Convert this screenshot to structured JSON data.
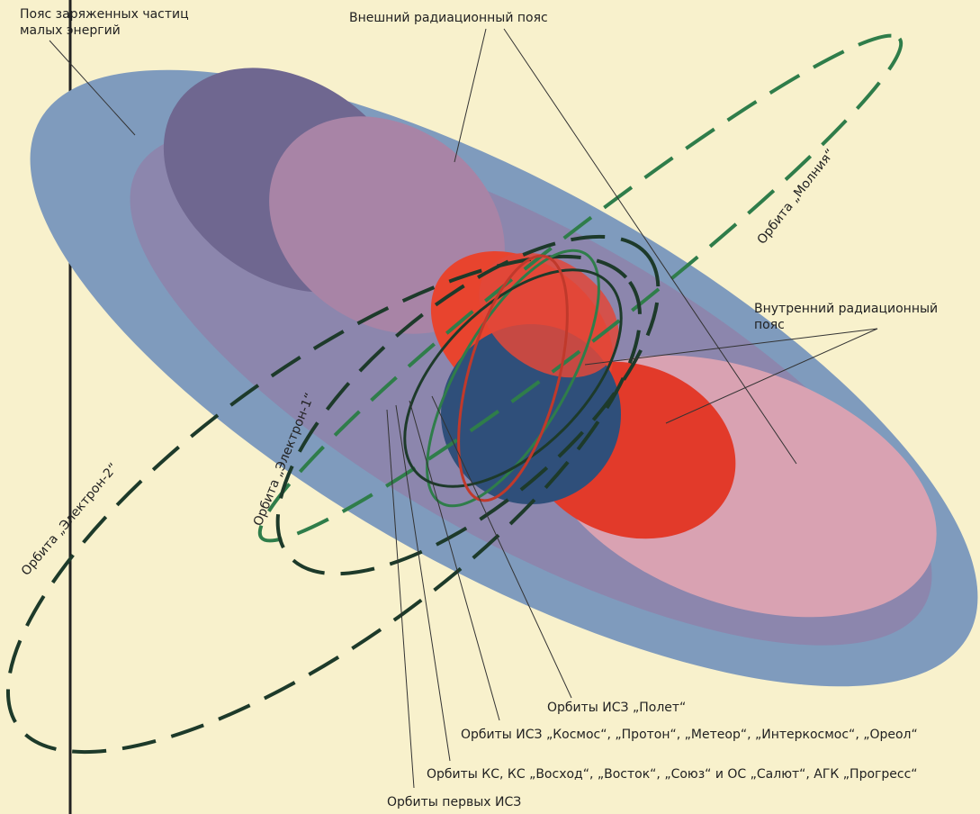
{
  "labels": {
    "low_energy_belt": [
      "Пояс заряженных частиц",
      "малых энергий"
    ],
    "outer_belt": "Внешний радиационный пояс",
    "molniya_orbit": "Орбита „Молния“",
    "inner_belt": [
      "Внутренний радиационный",
      "пояс"
    ],
    "electron1_orbit": "Орбита „Электрон-1“",
    "electron2_orbit": "Орбита „Электрон-2“",
    "polet_orbits": "Орбиты ИСЗ „Полет“",
    "kosmos_orbits": "Орбиты ИСЗ „Космос“, „Протон“, „Метеор“, „Интеркосмос“, „Ореол“",
    "ks_orbits": "Орбиты КС, КС „Восход“, „Восток“, „Союз“ и ОС „Салют“, АГК „Прогресс“",
    "first_sat_orbits": "Орбиты первых ИСЗ"
  }
}
